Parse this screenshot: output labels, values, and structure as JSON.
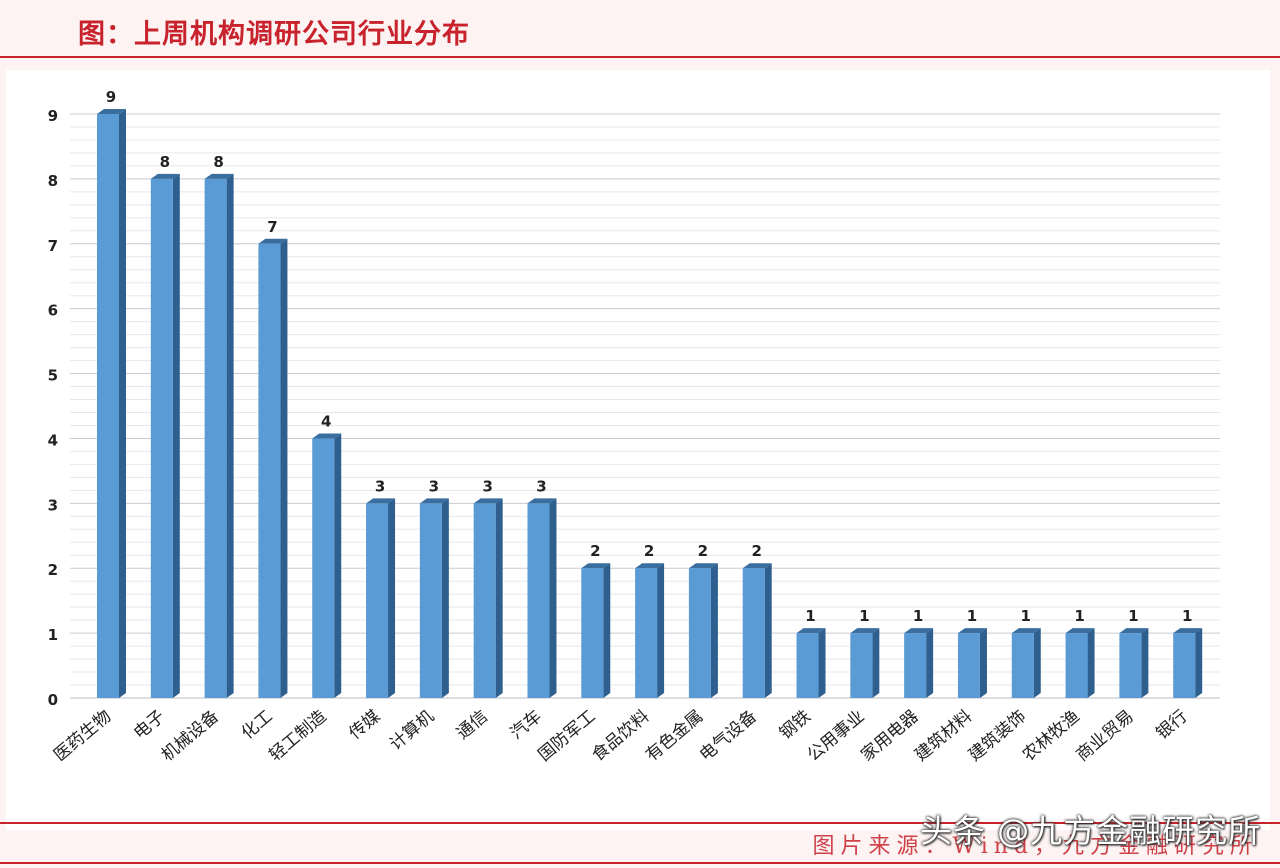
{
  "header": {
    "title": "图：上周机构调研公司行业分布"
  },
  "footer": {
    "source": "图片来源：Wind，九方金融研究所",
    "watermark": "头条 @九方金融研究所"
  },
  "colors": {
    "accent": "#c8232c",
    "bar_front": "#5b9bd5",
    "bar_side": "#2e5f8e",
    "bar_top": "#3a6e9f"
  },
  "chart_data": {
    "type": "bar",
    "title": "",
    "xlabel": "",
    "ylabel": "",
    "ylim": [
      0,
      9
    ],
    "yticks": [
      0,
      1,
      2,
      3,
      4,
      5,
      6,
      7,
      8,
      9
    ],
    "grid": true,
    "categories": [
      "医药生物",
      "电子",
      "机械设备",
      "化工",
      "轻工制造",
      "传媒",
      "计算机",
      "通信",
      "汽车",
      "国防军工",
      "食品饮料",
      "有色金属",
      "电气设备",
      "钢铁",
      "公用事业",
      "家用电器",
      "建筑材料",
      "建筑装饰",
      "农林牧渔",
      "商业贸易",
      "银行"
    ],
    "values": [
      9,
      8,
      8,
      7,
      4,
      3,
      3,
      3,
      3,
      2,
      2,
      2,
      2,
      1,
      1,
      1,
      1,
      1,
      1,
      1,
      1
    ]
  }
}
